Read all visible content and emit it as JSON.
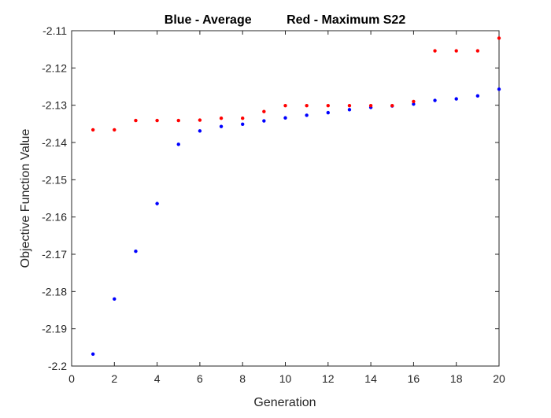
{
  "chart_data": {
    "type": "scatter",
    "title": "Blue - Average          Red - Maximum S22",
    "xlabel": "Generation",
    "ylabel": "Objective Function Value",
    "xlim": [
      0,
      20
    ],
    "ylim": [
      -2.2,
      -2.11
    ],
    "xticks": [
      "0",
      "2",
      "4",
      "6",
      "8",
      "10",
      "12",
      "14",
      "16",
      "18",
      "20"
    ],
    "yticks": [
      "-2.11",
      "-2.12",
      "-2.13",
      "-2.14",
      "-2.15",
      "-2.16",
      "-2.17",
      "-2.18",
      "-2.19",
      "-2.2"
    ],
    "grid": false,
    "x": [
      1,
      2,
      3,
      4,
      5,
      6,
      7,
      8,
      9,
      10,
      11,
      12,
      13,
      14,
      15,
      16,
      17,
      18,
      19,
      20
    ],
    "series": [
      {
        "color": "#0000ff",
        "values": [
          -2.1968,
          -2.182,
          -2.1692,
          -2.1564,
          -2.1405,
          -2.1369,
          -2.1357,
          -2.1351,
          -2.1342,
          -2.1334,
          -2.1327,
          -2.132,
          -2.1312,
          -2.1306,
          -2.1302,
          -2.1297,
          -2.1287,
          -2.1283,
          -2.1275,
          -2.1257
        ]
      },
      {
        "color": "#ff0000",
        "values": [
          -2.1366,
          -2.1366,
          -2.1341,
          -2.1341,
          -2.1341,
          -2.134,
          -2.1335,
          -2.1335,
          -2.1317,
          -2.1301,
          -2.1301,
          -2.1301,
          -2.1301,
          -2.1301,
          -2.1301,
          -2.129,
          -2.1154,
          -2.1154,
          -2.1154,
          -2.112
        ]
      }
    ]
  }
}
